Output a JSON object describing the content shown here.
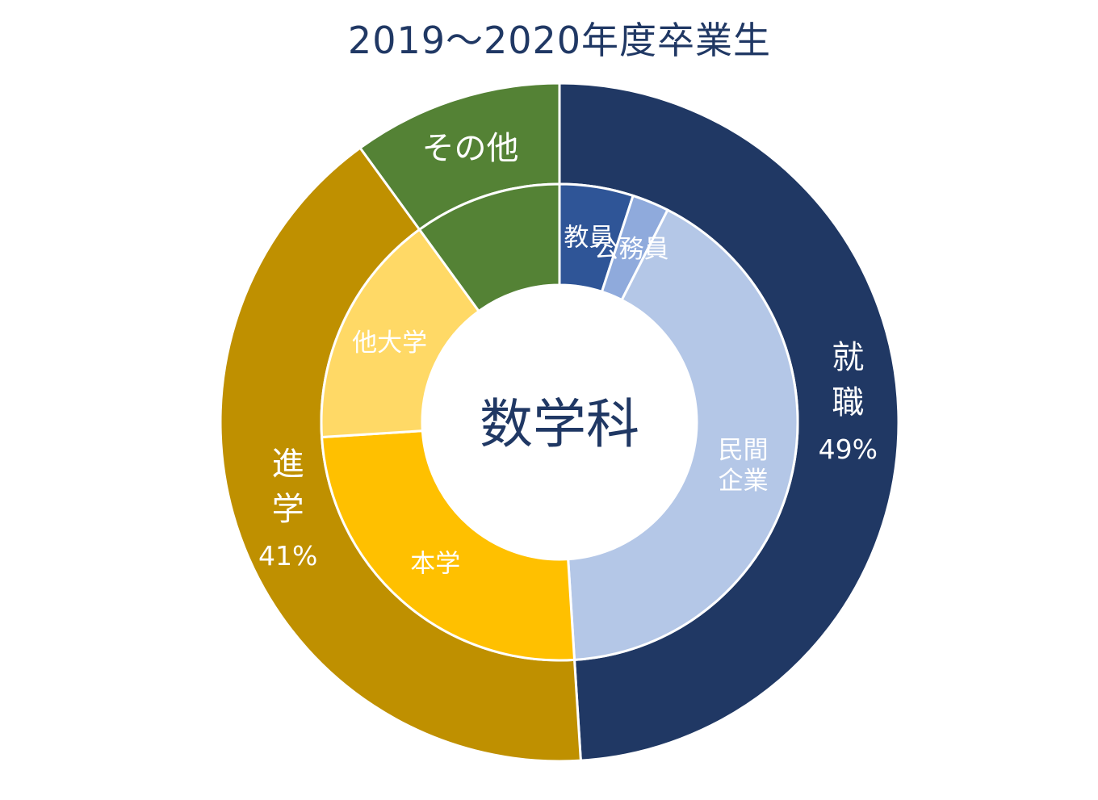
{
  "chart_data": {
    "type": "pie",
    "subtype": "nested-donut",
    "title": "2019～2020年度卒業生",
    "center_label": "数学科",
    "outer": {
      "categories": [
        {
          "label": "就職",
          "value": 49,
          "value_label": "49%",
          "color": "#203864"
        },
        {
          "label": "進学",
          "value": 41,
          "value_label": "41%",
          "color": "#BF9000"
        },
        {
          "label": "その他",
          "value": 10,
          "value_label": "",
          "color": "#548235"
        }
      ]
    },
    "inner": {
      "categories": [
        {
          "label": "教員",
          "parent": "就職",
          "value": 5,
          "color": "#2F5597"
        },
        {
          "label": "公務員",
          "parent": "就職",
          "value": 2.5,
          "color": "#8FAADC"
        },
        {
          "label": "民間企業",
          "parent": "就職",
          "value": 41.5,
          "color": "#B4C7E7"
        },
        {
          "label": "本学",
          "parent": "進学",
          "value": 25,
          "color": "#FFC000"
        },
        {
          "label": "他大学",
          "parent": "進学",
          "value": 16,
          "color": "#FFD966"
        },
        {
          "label": "その他",
          "parent": "その他",
          "value": 10,
          "color": "#548235",
          "show_label": false
        }
      ]
    },
    "start_angle_deg": 0,
    "direction": "clockwise"
  }
}
